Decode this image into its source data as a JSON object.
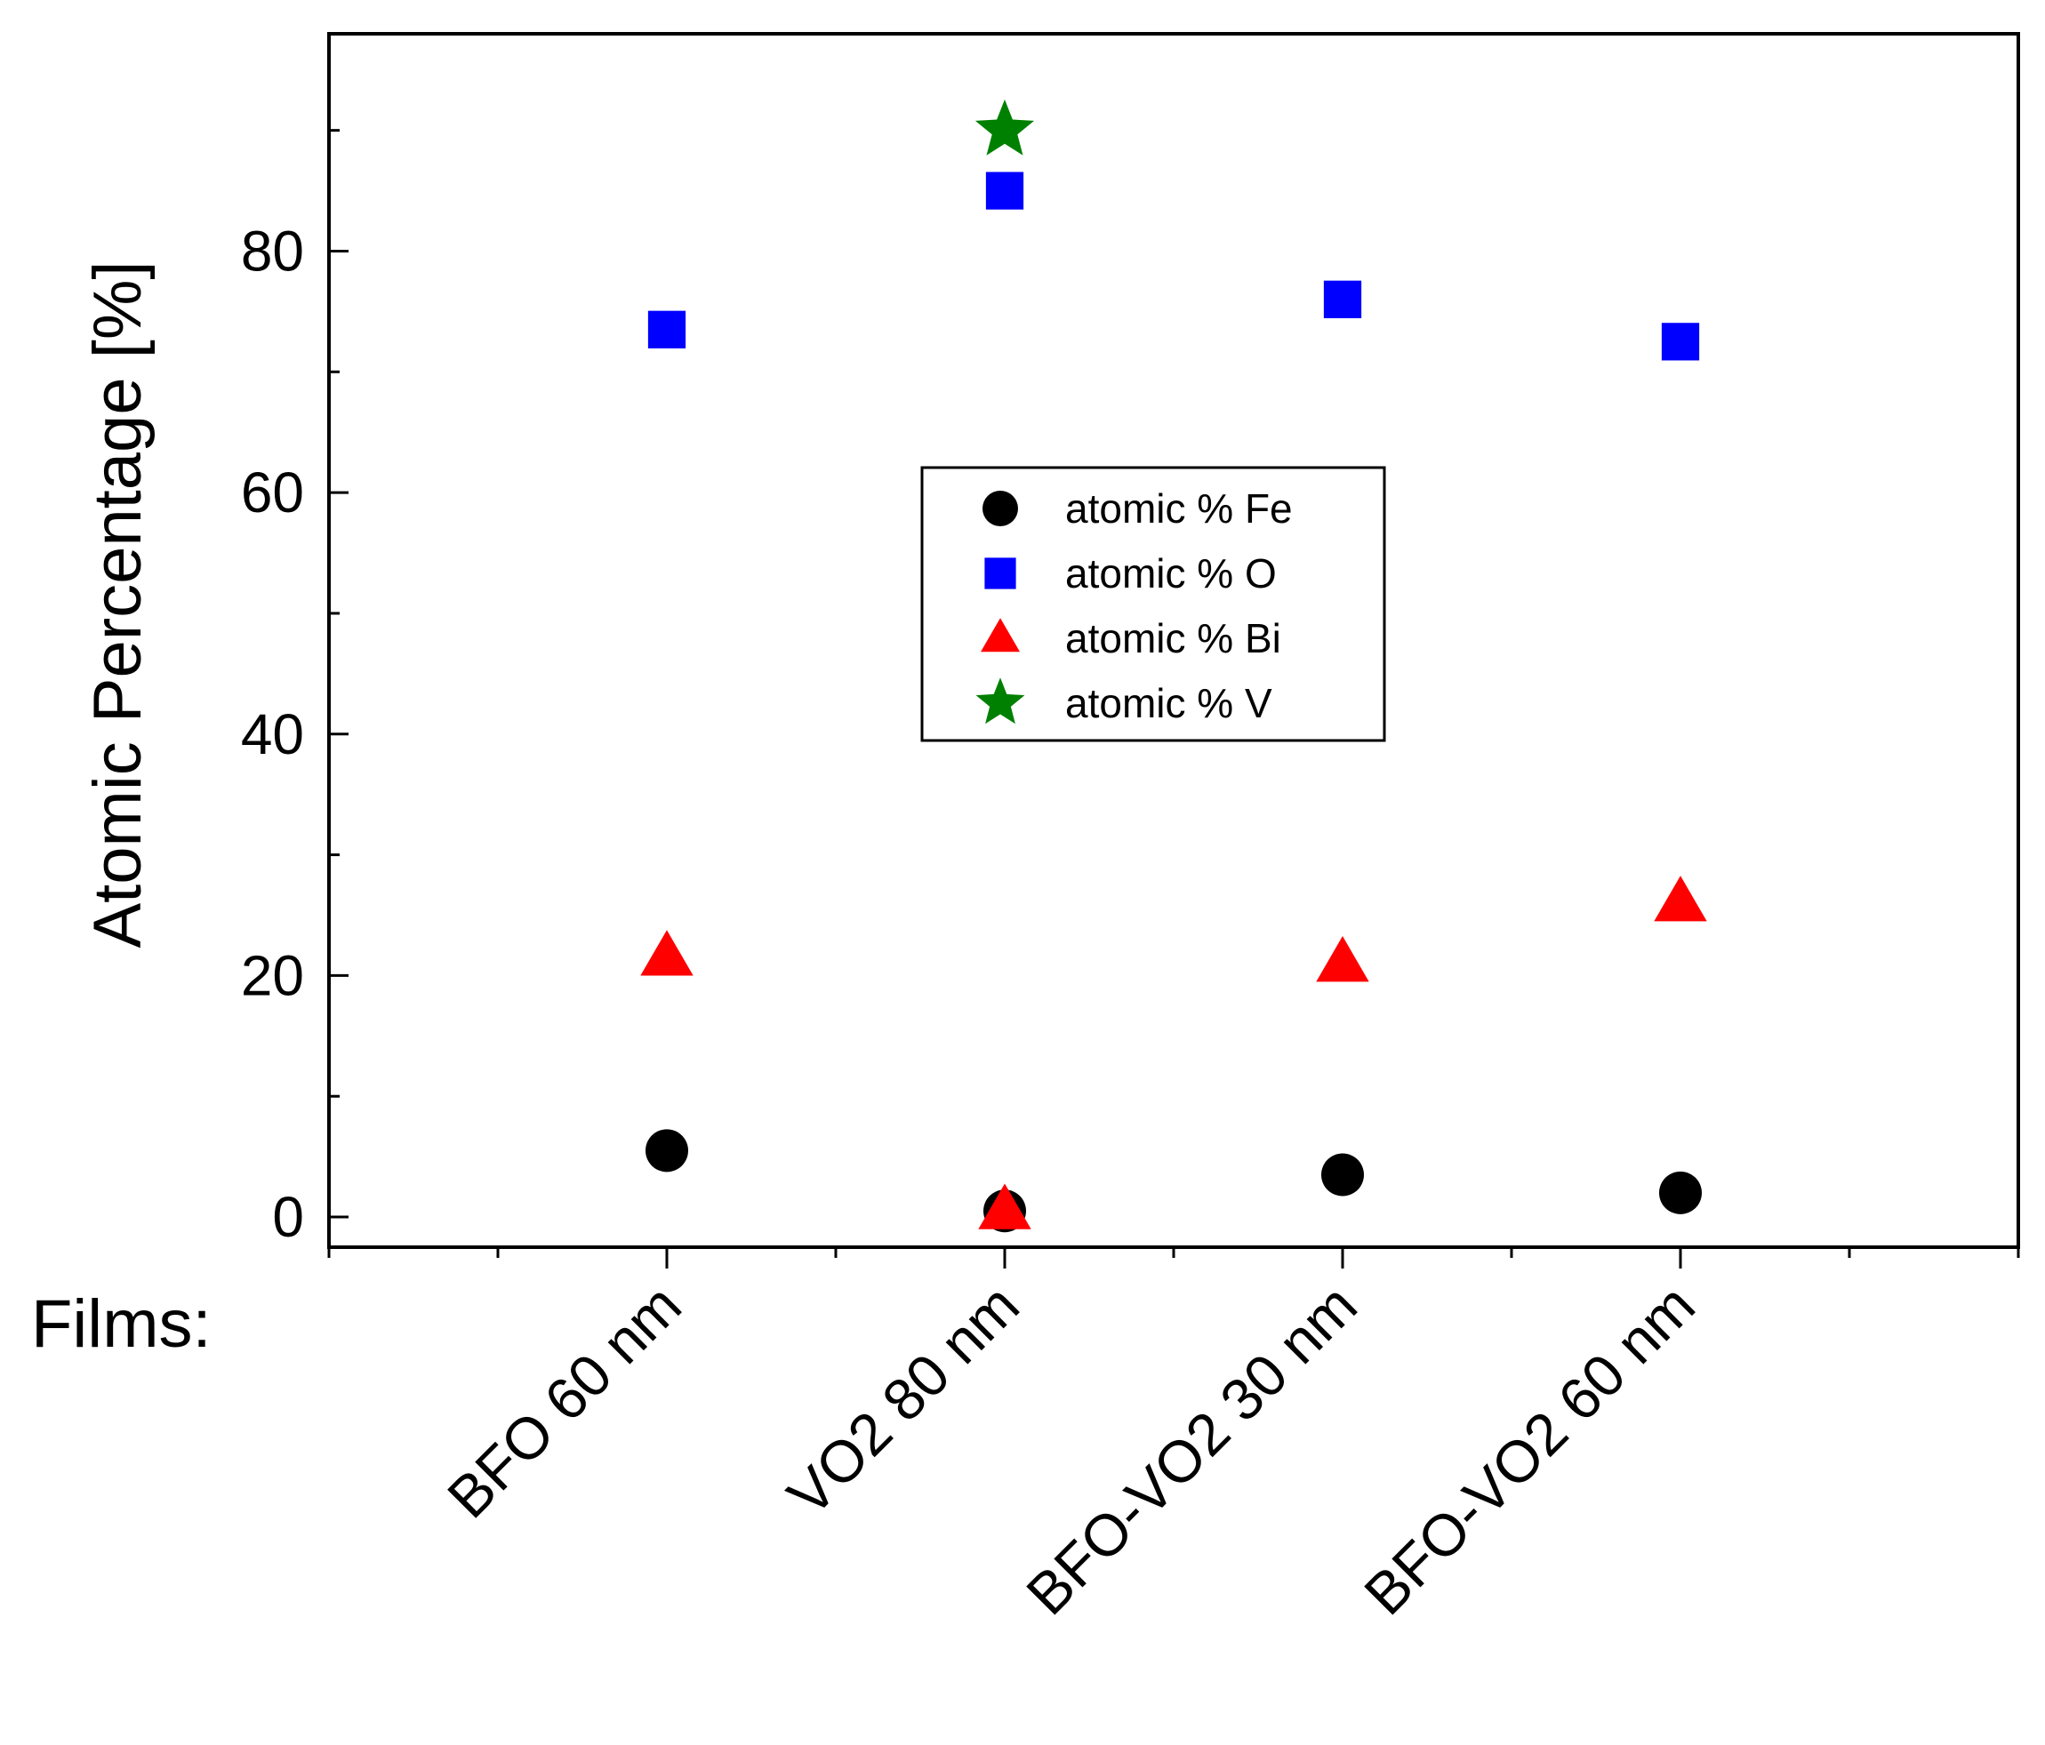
{
  "chart_data": {
    "type": "scatter",
    "title": "",
    "xlabel": "Films:",
    "ylabel": "Atomic Percentage [%]",
    "ylim": [
      -2.5,
      98
    ],
    "yticks": [
      0,
      20,
      40,
      60,
      80
    ],
    "grid": false,
    "legend_position": "center",
    "categories": [
      "BFO 60 nm",
      "VO2 80 nm",
      "BFO-VO2 30 nm",
      "BFO-VO2 60 nm"
    ],
    "series": [
      {
        "name": "atomic % Fe",
        "marker": "circle",
        "color": "#000000",
        "values": [
          5.5,
          0.5,
          3.5,
          2.0
        ]
      },
      {
        "name": "atomic % O",
        "marker": "square",
        "color": "#0000ff",
        "values": [
          73.5,
          85.0,
          76.0,
          72.5
        ]
      },
      {
        "name": "atomic % Bi",
        "marker": "triangle",
        "color": "#ff0000",
        "values": [
          21.5,
          0.5,
          21.0,
          26.0
        ]
      },
      {
        "name": "atomic % V",
        "marker": "star",
        "color": "#008000",
        "values": [
          null,
          90.0,
          null,
          null
        ]
      }
    ]
  }
}
